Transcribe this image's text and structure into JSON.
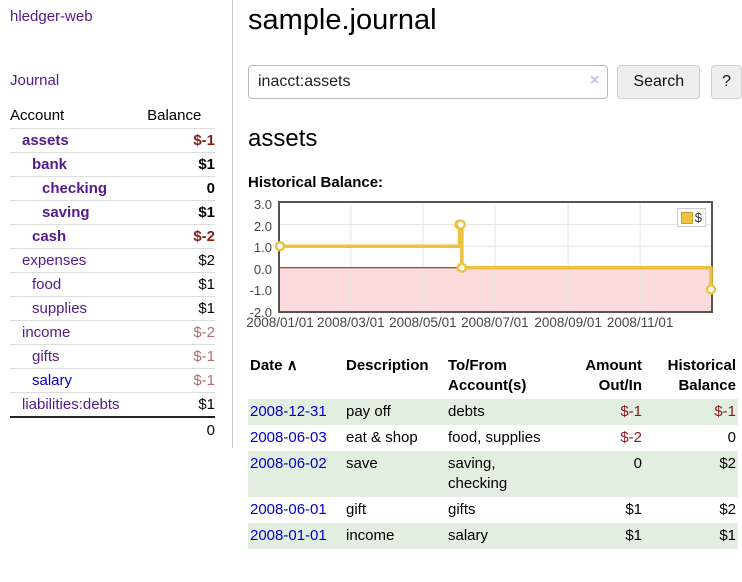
{
  "theme": {
    "purple_link": "#551a8b",
    "blue_link": "#0000cc",
    "negative_strong": "#8b1a1a",
    "negative_soft": "#b56a6a",
    "row_green": "#e2eedf",
    "chart_line_gold": "#edc240",
    "chart_negative_fill": "#fbdbdb",
    "chart_zero_line": "#a40000",
    "chart_grid": "#e4e4e4",
    "chart_border": "#545454",
    "axis_text": "#464646",
    "divider": "#cccccc",
    "row_border": "#dddddd",
    "button_bg": "#eeeeee",
    "button_border": "#cfcfcf"
  },
  "app": {
    "brand": "hledger-web"
  },
  "sidebar": {
    "nav": [
      {
        "label": "Journal"
      }
    ],
    "accounts": {
      "headers": {
        "account": "Account",
        "balance": "Balance"
      },
      "rows": [
        {
          "name": "assets",
          "depth": 0,
          "bold": true,
          "balance": "$-1",
          "negative": "strong",
          "link": "purple"
        },
        {
          "name": "bank",
          "depth": 1,
          "bold": true,
          "balance": "$1",
          "negative": null,
          "link": "purple"
        },
        {
          "name": "checking",
          "depth": 2,
          "bold": true,
          "balance": "0",
          "negative": null,
          "link": "purple"
        },
        {
          "name": "saving",
          "depth": 2,
          "bold": true,
          "balance": "$1",
          "negative": null,
          "link": "purple"
        },
        {
          "name": "cash",
          "depth": 1,
          "bold": true,
          "balance": "$-2",
          "negative": "strong",
          "link": "purple"
        },
        {
          "name": "expenses",
          "depth": 0,
          "bold": false,
          "balance": "$2",
          "negative": null,
          "link": "purple"
        },
        {
          "name": "food",
          "depth": 1,
          "bold": false,
          "balance": "$1",
          "negative": null,
          "link": "purple"
        },
        {
          "name": "supplies",
          "depth": 1,
          "bold": false,
          "balance": "$1",
          "negative": null,
          "link": "purple"
        },
        {
          "name": "income",
          "depth": 0,
          "bold": false,
          "balance": "$-2",
          "negative": "soft",
          "link": "purple"
        },
        {
          "name": "gifts",
          "depth": 1,
          "bold": false,
          "balance": "$-1",
          "negative": "soft",
          "link": "purple"
        },
        {
          "name": "salary",
          "depth": 1,
          "bold": false,
          "balance": "$-1",
          "negative": "soft",
          "link": "blue"
        },
        {
          "name": "liabilities:debts",
          "depth": 0,
          "bold": false,
          "balance": "$1",
          "negative": null,
          "link": "purple"
        }
      ],
      "total": "0"
    }
  },
  "main": {
    "title": "sample.journal",
    "search": {
      "value": "inacct:assets",
      "clear_icon": "×",
      "button": "Search",
      "help_button": "?"
    },
    "account_heading": "assets",
    "section_label": "Historical Balance:"
  },
  "chart_data": {
    "type": "line",
    "title": "Historical Balance:",
    "step": true,
    "x_start": "2008-01-01",
    "x_end": "2008-12-31",
    "ylim": [
      -2,
      3
    ],
    "y_ticks": [
      "3.0",
      "2.0",
      "1.0",
      "0.0",
      "-1.0",
      "-2.0"
    ],
    "x_ticks": [
      "2008/01/01",
      "2008/03/01",
      "2008/05/01",
      "2008/07/01",
      "2008/09/01",
      "2008/11/01"
    ],
    "grid": true,
    "negative_zone_shaded": true,
    "legend": {
      "label": "$",
      "position": "top-right"
    },
    "series": [
      {
        "name": "$",
        "color": "#edc240",
        "points": [
          {
            "x": "2008-01-01",
            "y": 1
          },
          {
            "x": "2008-06-01",
            "y": 2
          },
          {
            "x": "2008-06-02",
            "y": 2
          },
          {
            "x": "2008-06-03",
            "y": 0
          },
          {
            "x": "2008-12-31",
            "y": -1
          }
        ]
      }
    ]
  },
  "register": {
    "headers": {
      "date": "Date",
      "sort_icon": "∧",
      "description": "Description",
      "account_line1": "To/From",
      "account_line2": "Account(s)",
      "amount_line1": "Amount",
      "amount_line2": "Out/In",
      "balance_line1": "Historical",
      "balance_line2": "Balance"
    },
    "rows": [
      {
        "date": "2008-12-31",
        "description": "pay off",
        "account": "debts",
        "amount": "$-1",
        "amount_negative": true,
        "balance": "$-1",
        "balance_negative": true
      },
      {
        "date": "2008-06-03",
        "description": "eat & shop",
        "account": "food, supplies",
        "amount": "$-2",
        "amount_negative": true,
        "balance": "0",
        "balance_negative": false
      },
      {
        "date": "2008-06-02",
        "description": "save",
        "account": "saving, checking",
        "amount": "0",
        "amount_negative": false,
        "balance": "$2",
        "balance_negative": false
      },
      {
        "date": "2008-06-01",
        "description": "gift",
        "account": "gifts",
        "amount": "$1",
        "amount_negative": false,
        "balance": "$2",
        "balance_negative": false
      },
      {
        "date": "2008-01-01",
        "description": "income",
        "account": "salary",
        "amount": "$1",
        "amount_negative": false,
        "balance": "$1",
        "balance_negative": false
      }
    ]
  }
}
